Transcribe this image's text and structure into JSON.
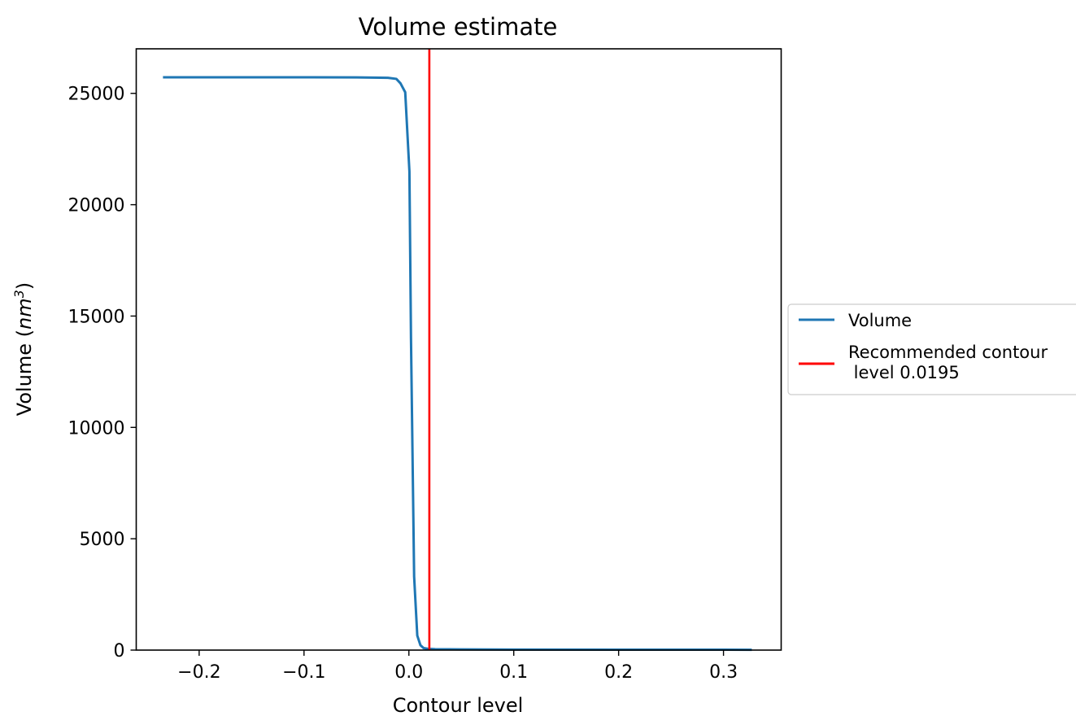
{
  "chart_data": {
    "type": "line",
    "title": "Volume estimate",
    "xlabel": "Contour level",
    "ylabel_main": "Volume (",
    "ylabel_unit": "nm",
    "ylabel_exp": "3",
    "ylabel_close": ")",
    "xlim": [
      -0.26,
      0.355
    ],
    "ylim": [
      0,
      27000
    ],
    "xticks": [
      -0.2,
      -0.1,
      0.0,
      0.1,
      0.2,
      0.3
    ],
    "xtick_labels": [
      "−0.2",
      "−0.1",
      "0.0",
      "0.1",
      "0.2",
      "0.3"
    ],
    "yticks": [
      0,
      5000,
      10000,
      15000,
      20000,
      25000
    ],
    "ytick_labels": [
      "0",
      "5000",
      "10000",
      "15000",
      "20000",
      "25000"
    ],
    "grid": false,
    "legend_position": "outside-right",
    "series": [
      {
        "name": "Volume",
        "color": "#1f77b4",
        "x": [
          -0.2345,
          -0.2,
          -0.15,
          -0.1,
          -0.05,
          -0.02,
          -0.012,
          -0.008,
          -0.0035,
          0.0005,
          0.002,
          0.005,
          0.008,
          0.011,
          0.014,
          0.018,
          0.025,
          0.05,
          0.1,
          0.2,
          0.327
        ],
        "y": [
          25720,
          25720,
          25720,
          25720,
          25715,
          25700,
          25650,
          25450,
          25050,
          21500,
          14000,
          3300,
          650,
          220,
          90,
          60,
          40,
          30,
          25,
          20,
          15
        ]
      },
      {
        "name": "Recommended contour\n level 0.0195",
        "color": "#ff0000",
        "vline_x": 0.0195
      }
    ],
    "legend": {
      "volume_label": "Volume",
      "recommended_label_line1": "Recommended contour",
      "recommended_label_line2": " level 0.0195"
    }
  }
}
